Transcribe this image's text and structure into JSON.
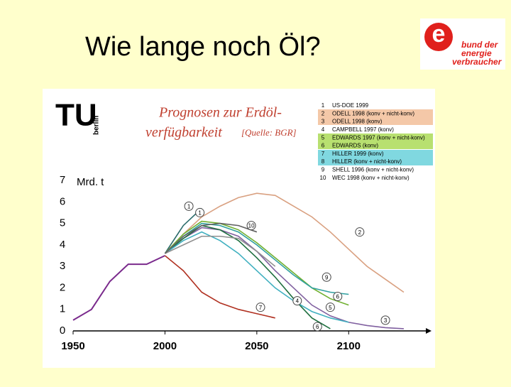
{
  "slide_title": "Wie lange noch Öl?",
  "logo": {
    "mark": "e",
    "lines": [
      "bund der",
      "energie",
      "verbraucher"
    ]
  },
  "chart_data": {
    "type": "line",
    "institution_logo": {
      "mark": "TU",
      "name": "berlin"
    },
    "title_lines": [
      "Prognosen zur Erdöl-",
      "verfügbarkeit"
    ],
    "source": "[Quelle: BGR]",
    "y_label": "Mrd. t",
    "x": [
      1950,
      1960,
      1970,
      1980,
      1990,
      2000,
      2010,
      2020,
      2030,
      2040,
      2050,
      2060,
      2070,
      2080,
      2090,
      2100,
      2110,
      2120,
      2130,
      2140
    ],
    "xlim": [
      1950,
      2142
    ],
    "ylim": [
      0,
      7
    ],
    "xticks": [
      1950,
      2000,
      2050,
      2100
    ],
    "yticks": [
      0,
      1,
      2,
      3,
      4,
      5,
      6,
      7
    ],
    "series": [
      {
        "color": "#7a2a8c",
        "values": [
          0.5,
          1.0,
          2.3,
          3.1,
          3.1,
          3.5,
          null,
          null,
          null,
          null,
          null,
          null,
          null,
          null,
          null,
          null,
          null,
          null,
          null,
          null
        ]
      },
      {
        "legend_number": "1",
        "name": "US-DOE 1999",
        "color": "#2a6b6b",
        "values": [
          null,
          null,
          null,
          null,
          null,
          3.6,
          4.9,
          5.7,
          null,
          null,
          null,
          null,
          null,
          null,
          null,
          null,
          null,
          null,
          null,
          null
        ]
      },
      {
        "legend_number": "2",
        "name": "ODELL 1998 (konv + nicht-konv)",
        "color": "#d9a080",
        "values": [
          null,
          null,
          null,
          null,
          null,
          3.6,
          4.5,
          5.3,
          5.8,
          6.2,
          6.4,
          6.3,
          5.8,
          5.3,
          4.6,
          3.8,
          3.0,
          2.4,
          1.8,
          null
        ]
      },
      {
        "legend_number": "3",
        "name": "ODELL 1998 (konv)",
        "color": "#8060a0",
        "values": [
          null,
          null,
          null,
          null,
          null,
          3.6,
          4.3,
          4.8,
          4.7,
          4.4,
          3.7,
          2.8,
          2.0,
          1.2,
          0.7,
          0.4,
          0.25,
          0.15,
          0.1,
          null
        ]
      },
      {
        "legend_number": "4",
        "name": "CAMPBELL 1997 (konv)",
        "color": "#b03020",
        "values": [
          null,
          null,
          null,
          null,
          null,
          3.5,
          2.8,
          1.8,
          1.3,
          1.0,
          0.8,
          0.6,
          null,
          null,
          null,
          null,
          null,
          null,
          null,
          null
        ]
      },
      {
        "legend_number": "5",
        "name": "EDWARDS 1997 (konv + nicht-konv)",
        "color": "#70b030",
        "values": [
          null,
          null,
          null,
          null,
          null,
          3.6,
          4.5,
          5.1,
          5.0,
          4.7,
          4.1,
          3.4,
          2.7,
          2.0,
          1.5,
          1.2,
          null,
          null,
          null,
          null
        ]
      },
      {
        "legend_number": "6",
        "name": "EDWARDS (konv)",
        "color": "#207040",
        "values": [
          null,
          null,
          null,
          null,
          null,
          3.6,
          4.3,
          4.9,
          4.7,
          4.2,
          3.4,
          2.5,
          1.5,
          0.6,
          0.1,
          null,
          null,
          null,
          null,
          null
        ]
      },
      {
        "legend_number": "7",
        "name": "HILLER 1999 (konv)",
        "color": "#40b0c0",
        "values": [
          null,
          null,
          null,
          null,
          null,
          3.6,
          4.2,
          4.6,
          4.2,
          3.6,
          2.8,
          2.0,
          1.4,
          0.9,
          0.6,
          0.4,
          null,
          null,
          null,
          null
        ]
      },
      {
        "legend_number": "8",
        "name": "HILLER (konv + nicht-konv)",
        "color": "#30a0a0",
        "values": [
          null,
          null,
          null,
          null,
          null,
          3.6,
          4.4,
          5.0,
          4.9,
          4.6,
          4.0,
          3.3,
          2.6,
          2.0,
          1.8,
          1.7,
          null,
          null,
          null,
          null
        ]
      },
      {
        "legend_number": "9",
        "name": "SHELL 1996 (konv + nicht-konv)",
        "color": "#909090",
        "values": [
          null,
          null,
          null,
          null,
          null,
          3.6,
          4.0,
          4.4,
          4.4,
          4.3,
          3.7,
          3.0,
          null,
          null,
          null,
          null,
          null,
          null,
          null,
          null
        ]
      },
      {
        "legend_number": "10",
        "name": "WEC 1998 (konv + nicht-konv)",
        "color": "#606060",
        "values": [
          null,
          null,
          null,
          null,
          null,
          3.6,
          4.4,
          4.9,
          5.0,
          4.9,
          4.6,
          null,
          null,
          null,
          null,
          null,
          null,
          null,
          null,
          null
        ]
      }
    ],
    "annotations": [
      {
        "label": "1",
        "x": 2013,
        "y": 5.8
      },
      {
        "label": "1",
        "x": 2019,
        "y": 5.5
      },
      {
        "label": "10",
        "x": 2047,
        "y": 4.9
      },
      {
        "label": "2",
        "x": 2106,
        "y": 4.6
      },
      {
        "label": "9",
        "x": 2088,
        "y": 2.5
      },
      {
        "label": "6",
        "x": 2094,
        "y": 1.6
      },
      {
        "label": "5",
        "x": 2090,
        "y": 1.1
      },
      {
        "label": "7",
        "x": 2052,
        "y": 1.1
      },
      {
        "label": "4",
        "x": 2072,
        "y": 1.4
      },
      {
        "label": "3",
        "x": 2120,
        "y": 0.5
      },
      {
        "label": "6",
        "x": 2083,
        "y": 0.2
      }
    ]
  }
}
